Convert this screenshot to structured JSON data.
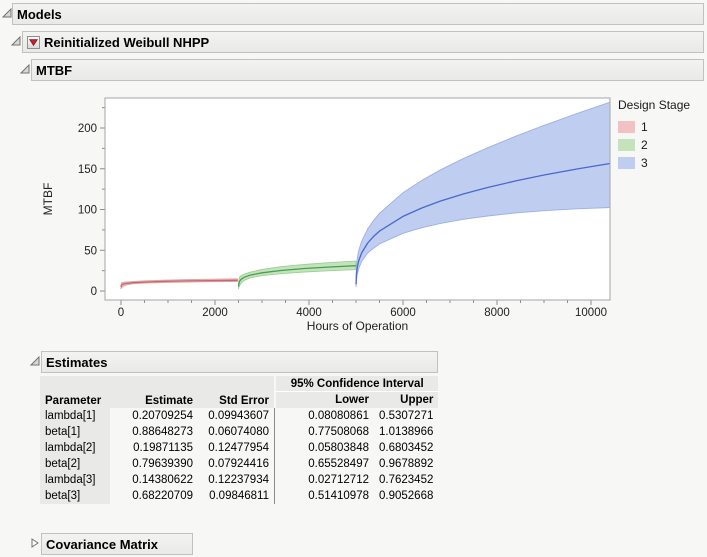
{
  "outline": {
    "models_label": "Models",
    "model_label": "Reinitialized Weibull NHPP",
    "mtbf_label": "MTBF",
    "estimates_label": "Estimates",
    "covariance_label": "Covariance Matrix"
  },
  "chart_data": {
    "type": "area",
    "xlabel": "Hours of Operation",
    "ylabel": "MTBF",
    "xlim": [
      -340,
      10404
    ],
    "ylim": [
      -11,
      236.8
    ],
    "x_ticks": [
      0,
      2000,
      4000,
      6000,
      8000,
      10000
    ],
    "y_ticks": [
      0,
      50,
      100,
      150,
      200
    ],
    "x_minor_step": 500,
    "y_minor_step": 25,
    "grid": false,
    "frame_color": "#a6a6a6",
    "legend": {
      "title": "Design Stage",
      "position": "right",
      "entries": [
        {
          "label": "1",
          "fill": "#f2c1c4",
          "edge": "#dda3a7",
          "line": "#c4686e"
        },
        {
          "label": "2",
          "fill": "#c4e3bd",
          "edge": "#a0cd99",
          "line": "#44a14e"
        },
        {
          "label": "3",
          "fill": "#bfcdf1",
          "edge": "#9cb0e2",
          "line": "#4a67cb"
        }
      ]
    },
    "series": [
      {
        "name": "1",
        "x": [
          0.5,
          10,
          30,
          60,
          120,
          250,
          500,
          900,
          1400,
          1900,
          2480
        ],
        "center": [
          5.0,
          7.1,
          8.0,
          8.7,
          9.4,
          10.2,
          11.0,
          11.8,
          12.4,
          12.8,
          13.2
        ],
        "lower": [
          2.8,
          3.9,
          5.1,
          6.3,
          7.7,
          8.9,
          9.8,
          10.4,
          11.0,
          11.4,
          11.7
        ],
        "upper": [
          7.0,
          9.7,
          10.5,
          10.8,
          11.1,
          11.6,
          12.5,
          13.3,
          14.0,
          14.5,
          15.0
        ]
      },
      {
        "name": "2",
        "x": [
          2500.5,
          2510,
          2530,
          2560,
          2620,
          2750,
          3000,
          3400,
          3900,
          4400,
          5000
        ],
        "center": [
          5.5,
          10.1,
          12.6,
          14.5,
          16.8,
          19.5,
          22.4,
          25.2,
          27.6,
          29.4,
          31.1
        ],
        "lower": [
          2.7,
          5.0,
          7.4,
          9.8,
          13.0,
          16.2,
          18.9,
          21.3,
          23.3,
          24.8,
          26.3
        ],
        "upper": [
          8.0,
          14.5,
          17.4,
          19.0,
          20.7,
          23.1,
          26.4,
          29.8,
          32.6,
          34.7,
          36.7
        ]
      },
      {
        "name": "3",
        "x": [
          5000.5,
          5010,
          5030,
          5060,
          5120,
          5250,
          5375,
          5500,
          6000,
          6400,
          6800,
          7300,
          7800,
          8400,
          9000,
          9700,
          10404
        ],
        "center": [
          8.2,
          21.2,
          30.0,
          37.5,
          46.7,
          58.9,
          67.0,
          73.5,
          91.6,
          101.9,
          110.4,
          119.4,
          127.0,
          135.1,
          142.3,
          149.7,
          156.5
        ],
        "lower": [
          5.3,
          14.3,
          21.3,
          27.8,
          36.2,
          46.6,
          52.6,
          57.8,
          70.8,
          77.7,
          83.0,
          88.1,
          92.1,
          95.8,
          98.5,
          100.9,
          102.5
        ],
        "upper": [
          11.5,
          29.8,
          41.2,
          50.1,
          60.9,
          76.2,
          86.7,
          95.4,
          120.6,
          135.7,
          148.7,
          163.0,
          175.7,
          190.0,
          203.2,
          217.7,
          231.6
        ]
      }
    ]
  },
  "estimates_table": {
    "group_header": "95% Confidence Interval",
    "col_headers": [
      "Parameter",
      "Estimate",
      "Std Error",
      "Lower",
      "Upper"
    ],
    "rows": [
      [
        "lambda[1]",
        "0.20709254",
        "0.09943607",
        "0.08080861",
        "0.5307271"
      ],
      [
        "beta[1]",
        "0.88648273",
        "0.06074080",
        "0.77508068",
        "1.0138966"
      ],
      [
        "lambda[2]",
        "0.19871135",
        "0.12477954",
        "0.05803848",
        "0.6803452"
      ],
      [
        "beta[2]",
        "0.79639390",
        "0.07924416",
        "0.65528497",
        "0.9678892"
      ],
      [
        "lambda[3]",
        "0.14380622",
        "0.12237934",
        "0.02712712",
        "0.7623452"
      ],
      [
        "beta[3]",
        "0.68220709",
        "0.09846811",
        "0.51410978",
        "0.9052668"
      ]
    ]
  }
}
